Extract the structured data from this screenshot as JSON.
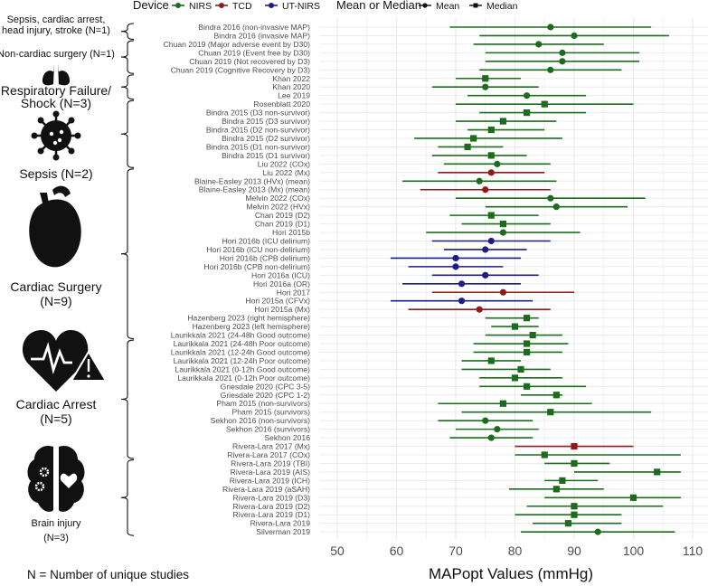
{
  "chart_data": {
    "type": "forest",
    "xlabel": "MAPopt Values (mmHg)",
    "xlim": [
      47,
      112.6
    ],
    "xticks": [
      50,
      60,
      70,
      80,
      90,
      100,
      110
    ],
    "grid": true,
    "footnote": "N = Number of unique studies",
    "legend": {
      "placement": "top",
      "device_title": "Device",
      "devices": [
        {
          "name": "NIRS",
          "color": "#1d6b1d"
        },
        {
          "name": "TCD",
          "color": "#8e1b1b"
        },
        {
          "name": "UT-NIRS",
          "color": "#1c1c8a"
        }
      ],
      "stat_title": "Mean or Median",
      "stats": [
        {
          "name": "Mean",
          "shape": "circle"
        },
        {
          "name": "Median",
          "shape": "square"
        }
      ]
    },
    "groups": [
      {
        "lines": [
          "Sepsis, cardiac arrest,",
          "head injury, stroke (N=1)"
        ],
        "icon": "none",
        "rows": [
          0,
          1
        ]
      },
      {
        "lines": [
          "Non-cardiac surgery (N=1)"
        ],
        "icon": "lungs-icon",
        "rows": [
          2,
          5
        ]
      },
      {
        "lines": [
          "Respiratory Failure/",
          "Shock (N=3)"
        ],
        "icon": "none",
        "rows": [
          6,
          8
        ]
      },
      {
        "lines": [
          "Sepsis (N=2)"
        ],
        "icon": "virus-icon",
        "rows": [
          9,
          16
        ]
      },
      {
        "lines": [
          "Cardiac Surgery",
          "(N=9)"
        ],
        "icon": "heart-icon",
        "rows": [
          17,
          36
        ]
      },
      {
        "lines": [
          "Cardiac Arrest",
          "(N=5)"
        ],
        "icon": "heart-pulse-warning-icon",
        "rows": [
          37,
          50
        ]
      },
      {
        "lines": [
          "Brain injury",
          "(N=3)"
        ],
        "icon": "brain-icon",
        "rows": [
          51,
          59
        ]
      }
    ],
    "rows": [
      {
        "label": "Bindra 2016 (non-invasive MAP)",
        "device": "NIRS",
        "stat": "Mean",
        "value": 86,
        "lower": 69,
        "upper": 103
      },
      {
        "label": "Bindra 2016 (invasive MAP)",
        "device": "NIRS",
        "stat": "Mean",
        "value": 90,
        "lower": 74,
        "upper": 106
      },
      {
        "label": "Chuan 2019 (Major adverse event by D30)",
        "device": "NIRS",
        "stat": "Mean",
        "value": 84,
        "lower": 73,
        "upper": 95
      },
      {
        "label": "Chuan 2019 (Event free by D30)",
        "device": "NIRS",
        "stat": "Mean",
        "value": 88,
        "lower": 75,
        "upper": 101
      },
      {
        "label": "Chuan 2019 (Not recovered by D3)",
        "device": "NIRS",
        "stat": "Mean",
        "value": 88,
        "lower": 75,
        "upper": 101
      },
      {
        "label": "Chuan 2019 (Cognitive Recovery by D3)",
        "device": "NIRS",
        "stat": "Mean",
        "value": 86,
        "lower": 74,
        "upper": 98
      },
      {
        "label": "Khan 2022",
        "device": "NIRS",
        "stat": "Median",
        "value": 75,
        "lower": 70,
        "upper": 81
      },
      {
        "label": "Khan 2020",
        "device": "NIRS",
        "stat": "Mean",
        "value": 75,
        "lower": 66,
        "upper": 84
      },
      {
        "label": "Lee 2019",
        "device": "NIRS",
        "stat": "Mean",
        "value": 82,
        "lower": 72,
        "upper": 92
      },
      {
        "label": "Rosenblatt 2020",
        "device": "NIRS",
        "stat": "Median",
        "value": 85,
        "lower": 70,
        "upper": 100
      },
      {
        "label": "Bindra 2015 (D3 non-survivor)",
        "device": "NIRS",
        "stat": "Median",
        "value": 82,
        "lower": 74,
        "upper": 92
      },
      {
        "label": "Bindra 2015 (D3 survivor)",
        "device": "NIRS",
        "stat": "Median",
        "value": 78,
        "lower": 70,
        "upper": 87
      },
      {
        "label": "Bindra 2015 (D2 non-survivor)",
        "device": "NIRS",
        "stat": "Median",
        "value": 76,
        "lower": 72,
        "upper": 85
      },
      {
        "label": "Bindra 2015 (D2 survivor)",
        "device": "NIRS",
        "stat": "Median",
        "value": 73,
        "lower": 63,
        "upper": 88
      },
      {
        "label": "Bindra 2015 (D1 non-survivor)",
        "device": "NIRS",
        "stat": "Median",
        "value": 72,
        "lower": 67,
        "upper": 78
      },
      {
        "label": "Bindra 2015 (D1 survivor)",
        "device": "NIRS",
        "stat": "Median",
        "value": 76,
        "lower": 66,
        "upper": 82
      },
      {
        "label": "Liu 2022 (COx)",
        "device": "NIRS",
        "stat": "Mean",
        "value": 77,
        "lower": 68,
        "upper": 86
      },
      {
        "label": "Liu 2022 (Mx)",
        "device": "TCD",
        "stat": "Mean",
        "value": 76,
        "lower": 67,
        "upper": 85
      },
      {
        "label": "Blaine-Easley 2013 (HVx) (mean)",
        "device": "NIRS",
        "stat": "Mean",
        "value": 74,
        "lower": 61,
        "upper": 87
      },
      {
        "label": "Blaine-Easley 2013 (Mx) (mean)",
        "device": "TCD",
        "stat": "Mean",
        "value": 75,
        "lower": 64,
        "upper": 86
      },
      {
        "label": "Melvin 2022 (COx)",
        "device": "NIRS",
        "stat": "Mean",
        "value": 86,
        "lower": 70,
        "upper": 102
      },
      {
        "label": "Melvin 2022 (HVx)",
        "device": "NIRS",
        "stat": "Mean",
        "value": 87,
        "lower": 75,
        "upper": 99
      },
      {
        "label": "Chan 2019 (D2)",
        "device": "NIRS",
        "stat": "Median",
        "value": 76,
        "lower": 69,
        "upper": 84
      },
      {
        "label": "Chan 2019 (D1)",
        "device": "NIRS",
        "stat": "Median",
        "value": 78,
        "lower": 71,
        "upper": 86
      },
      {
        "label": "Hori 2015b",
        "device": "NIRS",
        "stat": "Mean",
        "value": 78,
        "lower": 65,
        "upper": 91
      },
      {
        "label": "Hori 2016b (ICU delirium)",
        "device": "UT-NIRS",
        "stat": "Mean",
        "value": 76,
        "lower": 66,
        "upper": 86
      },
      {
        "label": "Hori 2016b (ICU non-delirium)",
        "device": "UT-NIRS",
        "stat": "Mean",
        "value": 75,
        "lower": 68,
        "upper": 82
      },
      {
        "label": "Hori 2016b (CPB delirium)",
        "device": "UT-NIRS",
        "stat": "Mean",
        "value": 70,
        "lower": 59,
        "upper": 81
      },
      {
        "label": "Hori 2016b (CPB non-delirium)",
        "device": "UT-NIRS",
        "stat": "Mean",
        "value": 70,
        "lower": 62,
        "upper": 78
      },
      {
        "label": "Hori 2016a (ICU)",
        "device": "UT-NIRS",
        "stat": "Mean",
        "value": 75,
        "lower": 66,
        "upper": 84
      },
      {
        "label": "Hori 2016a (OR)",
        "device": "UT-NIRS",
        "stat": "Mean",
        "value": 71,
        "lower": 61,
        "upper": 81
      },
      {
        "label": "Hori 2017",
        "device": "TCD",
        "stat": "Mean",
        "value": 78,
        "lower": 66,
        "upper": 90
      },
      {
        "label": "Hori 2015a (CFVx)",
        "device": "UT-NIRS",
        "stat": "Mean",
        "value": 71,
        "lower": 59,
        "upper": 83
      },
      {
        "label": "Hori 2015a (Mx)",
        "device": "TCD",
        "stat": "Mean",
        "value": 74,
        "lower": 62,
        "upper": 86
      },
      {
        "label": "Hazenberg 2023 (right hemisphere)",
        "device": "NIRS",
        "stat": "Median",
        "value": 82,
        "lower": 75,
        "upper": 84
      },
      {
        "label": "Hazenberg 2023 (left hemisphere)",
        "device": "NIRS",
        "stat": "Median",
        "value": 80,
        "lower": 76,
        "upper": 84
      },
      {
        "label": "Laurikkala 2021 (24-48h Good outcome)",
        "device": "NIRS",
        "stat": "Median",
        "value": 83,
        "lower": 75,
        "upper": 88
      },
      {
        "label": "Laurikkala 2021 (24-48h Poor outcome)",
        "device": "NIRS",
        "stat": "Median",
        "value": 82,
        "lower": 73,
        "upper": 89
      },
      {
        "label": "Laurikkala 2021 (12-24h Good outcome)",
        "device": "NIRS",
        "stat": "Median",
        "value": 82,
        "lower": 73,
        "upper": 88
      },
      {
        "label": "Laurikkala 2021 (12-24h Poor outcome)",
        "device": "NIRS",
        "stat": "Median",
        "value": 76,
        "lower": 71,
        "upper": 81
      },
      {
        "label": "Laurikkala 2021 (0-12h Good outcome)",
        "device": "NIRS",
        "stat": "Median",
        "value": 81,
        "lower": 71,
        "upper": 86
      },
      {
        "label": "Laurikkala 2021 (0-12h Poor outcome)",
        "device": "NIRS",
        "stat": "Median",
        "value": 80,
        "lower": 74,
        "upper": 88
      },
      {
        "label": "Griesdale 2020 (CPC 3-5)",
        "device": "NIRS",
        "stat": "Median",
        "value": 82,
        "lower": 74,
        "upper": 92
      },
      {
        "label": "Griesdale 2020 (CPC 1-2)",
        "device": "NIRS",
        "stat": "Median",
        "value": 87,
        "lower": 81,
        "upper": 88
      },
      {
        "label": "Pham 2015 (non-survivors)",
        "device": "NIRS",
        "stat": "Median",
        "value": 78,
        "lower": 67,
        "upper": 93
      },
      {
        "label": "Pham 2015  (survivors)",
        "device": "NIRS",
        "stat": "Median",
        "value": 86,
        "lower": 71,
        "upper": 103
      },
      {
        "label": "Sekhon 2016 (non-survivors)",
        "device": "NIRS",
        "stat": "Mean",
        "value": 75,
        "lower": 67,
        "upper": 83
      },
      {
        "label": "Sekhon 2016 (survivors)",
        "device": "NIRS",
        "stat": "Mean",
        "value": 77,
        "lower": 70,
        "upper": 84
      },
      {
        "label": "Sekhon 2016",
        "device": "NIRS",
        "stat": "Mean",
        "value": 76,
        "lower": 69,
        "upper": 83
      },
      {
        "label": "Rivera-Lara 2017 (Mx)",
        "device": "TCD",
        "stat": "Median",
        "value": 90,
        "lower": 80,
        "upper": 100
      },
      {
        "label": "Rivera-Lara 2017 (COx)",
        "device": "NIRS",
        "stat": "Median",
        "value": 85,
        "lower": 80,
        "upper": 108
      },
      {
        "label": "Rivera-Lara 2019 (TBI)",
        "device": "NIRS",
        "stat": "Median",
        "value": 90,
        "lower": 85,
        "upper": 96
      },
      {
        "label": "Rivera-Lara 2019 (AIS)",
        "device": "NIRS",
        "stat": "Median",
        "value": 104,
        "lower": 90,
        "upper": 108
      },
      {
        "label": "Rivera-Lara 2019 (ICH)",
        "device": "NIRS",
        "stat": "Median",
        "value": 88,
        "lower": 85,
        "upper": 94
      },
      {
        "label": "Rivera-Lara 2019 (aSAH)",
        "device": "NIRS",
        "stat": "Median",
        "value": 87,
        "lower": 79,
        "upper": 95
      },
      {
        "label": "Rivera-Lara 2019 (D3)",
        "device": "NIRS",
        "stat": "Median",
        "value": 100,
        "lower": 85,
        "upper": 108
      },
      {
        "label": "Rivera-Lara 2019 (D2)",
        "device": "NIRS",
        "stat": "Median",
        "value": 90,
        "lower": 82,
        "upper": 105
      },
      {
        "label": "Rivera-Lara 2019 (D1)",
        "device": "NIRS",
        "stat": "Median",
        "value": 90,
        "lower": 80,
        "upper": 98
      },
      {
        "label": "Rivera-Lara 2019",
        "device": "NIRS",
        "stat": "Median",
        "value": 89,
        "lower": 83,
        "upper": 98
      },
      {
        "label": "Silverman 2019",
        "device": "NIRS",
        "stat": "Mean",
        "value": 94,
        "lower": 81,
        "upper": 107
      }
    ]
  }
}
